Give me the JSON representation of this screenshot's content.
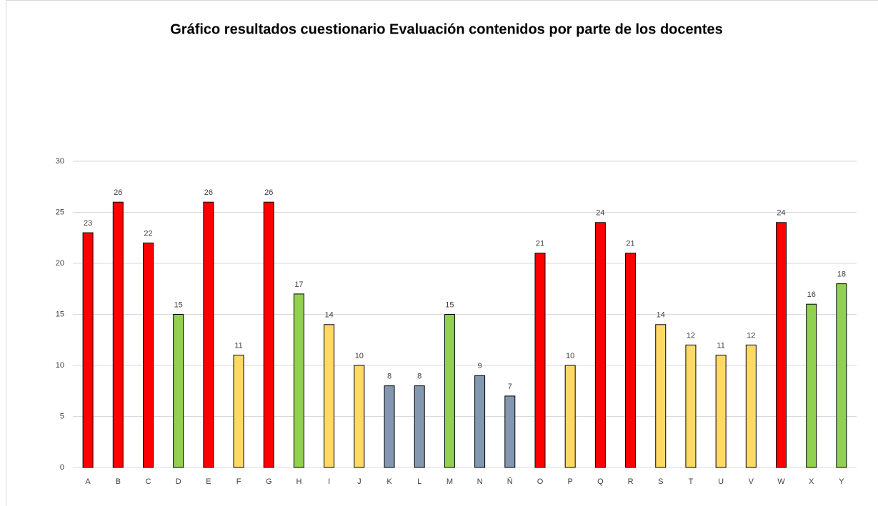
{
  "chart_data": {
    "type": "bar",
    "title": "Gráfico resultados cuestionario Evaluación contenidos por parte de los docentes",
    "categories": [
      "A",
      "B",
      "C",
      "D",
      "E",
      "F",
      "G",
      "H",
      "I",
      "J",
      "K",
      "L",
      "M",
      "N",
      "Ñ",
      "O",
      "P",
      "Q",
      "R",
      "S",
      "T",
      "U",
      "V",
      "W",
      "X",
      "Y"
    ],
    "values": [
      23,
      26,
      22,
      15,
      26,
      11,
      26,
      17,
      14,
      10,
      8,
      8,
      15,
      9,
      7,
      21,
      10,
      24,
      21,
      14,
      12,
      11,
      12,
      24,
      16,
      18
    ],
    "colors": [
      "#ff0000",
      "#ff0000",
      "#ff0000",
      "#92d050",
      "#ff0000",
      "#ffd966",
      "#ff0000",
      "#92d050",
      "#ffd966",
      "#ffd966",
      "#8497b0",
      "#8497b0",
      "#92d050",
      "#8497b0",
      "#8497b0",
      "#ff0000",
      "#ffd966",
      "#ff0000",
      "#ff0000",
      "#ffd966",
      "#ffd966",
      "#ffd966",
      "#ffd966",
      "#ff0000",
      "#92d050",
      "#92d050"
    ],
    "ylim": [
      0,
      30
    ],
    "yticks": [
      0,
      5,
      10,
      15,
      20,
      25,
      30
    ],
    "grid": true
  }
}
